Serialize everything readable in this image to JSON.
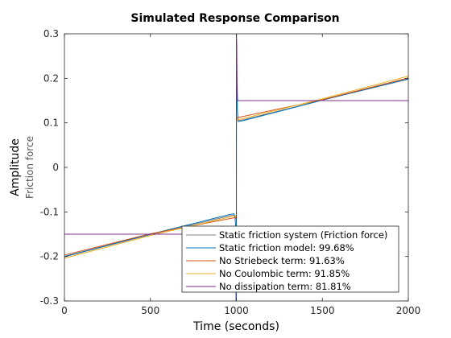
{
  "chart_data": {
    "type": "line",
    "title": "Simulated Response Comparison",
    "xlabel": "Time (seconds)",
    "ylabel": "Amplitude",
    "ysublabel": "Friction force",
    "xlim": [
      0,
      2000
    ],
    "ylim": [
      -0.3,
      0.3
    ],
    "xticks": [
      0,
      500,
      1000,
      1500,
      2000
    ],
    "xtick_labels": [
      "0",
      "500",
      "1000",
      "1500",
      "2000"
    ],
    "yticks": [
      -0.3,
      -0.2,
      -0.1,
      0,
      0.1,
      0.2,
      0.3
    ],
    "ytick_labels": [
      "-0.3",
      "-0.2",
      "-0.1",
      "0",
      "0.1",
      "0.2",
      "0.3"
    ],
    "grid": false,
    "legend_position": "bottom-right",
    "series": [
      {
        "name": "Static friction system (Friction force)",
        "color": "#808080",
        "x": [
          0,
          500,
          980,
          990,
          995,
          1000,
          1000,
          1005,
          1010,
          1030,
          1500,
          2000
        ],
        "y": [
          -0.201,
          -0.151,
          -0.107,
          -0.108,
          -0.112,
          -0.118,
          0.109,
          0.107,
          0.106,
          0.106,
          0.151,
          0.198
        ]
      },
      {
        "name": "Static friction model: 99.68%",
        "color": "#0072BD",
        "x": [
          0,
          500,
          960,
          985,
          990,
          995,
          998,
          1000,
          1001,
          1003,
          1006,
          1010,
          1040,
          1500,
          2000
        ],
        "y": [
          -0.2,
          -0.15,
          -0.106,
          -0.104,
          -0.108,
          -0.125,
          -0.3,
          -0.3,
          0.28,
          0.2,
          0.13,
          0.103,
          0.105,
          0.151,
          0.199
        ]
      },
      {
        "name": "No Striebeck term: 91.63%",
        "color": "#D95319",
        "x": [
          0,
          500,
          990,
          999,
          1000,
          1000,
          1010,
          1500,
          2000
        ],
        "y": [
          -0.197,
          -0.149,
          -0.113,
          -0.112,
          -0.112,
          0.111,
          0.112,
          0.152,
          0.201
        ]
      },
      {
        "name": "No Coulombic term: 91.85%",
        "color": "#EDB120",
        "x": [
          0,
          500,
          1000,
          1000,
          1500,
          2000
        ],
        "y": [
          -0.204,
          -0.153,
          -0.108,
          0.106,
          0.154,
          0.205
        ]
      },
      {
        "name": "No dissipation term: 81.81%",
        "color": "#7E2F8E",
        "x": [
          0,
          999,
          999,
          1000,
          1000,
          1002,
          1004,
          1007,
          1010,
          2000
        ],
        "y": [
          -0.15,
          -0.15,
          -0.3,
          -0.3,
          0.3,
          0.28,
          0.19,
          0.15,
          0.15,
          0.15
        ]
      }
    ]
  }
}
